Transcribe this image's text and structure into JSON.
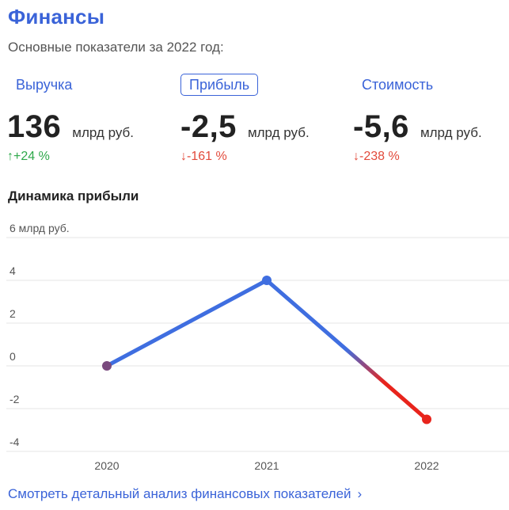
{
  "header": {
    "title": "Финансы",
    "subtitle": "Основные показатели за 2022 год:"
  },
  "tabs": [
    {
      "label": "Выручка",
      "active": false
    },
    {
      "label": "Прибыль",
      "active": true
    },
    {
      "label": "Стоимость",
      "active": false
    }
  ],
  "metrics": [
    {
      "value": "136",
      "unit": "млрд руб.",
      "delta": "↑+24 %",
      "trend": "up"
    },
    {
      "value": "-2,5",
      "unit": "млрд руб.",
      "delta": "↓-161 %",
      "trend": "down"
    },
    {
      "value": "-5,6",
      "unit": "млрд руб.",
      "delta": "↓-238 %",
      "trend": "down"
    }
  ],
  "chart_title": "Динамика прибыли",
  "chart_data": {
    "type": "line",
    "x": [
      "2020",
      "2021",
      "2022"
    ],
    "series": [
      {
        "values": [
          0,
          4,
          -2.5
        ]
      }
    ],
    "ylim": [
      -4,
      6
    ],
    "yticks": [
      {
        "value": 6,
        "label": "6 млрд руб."
      },
      {
        "value": 4,
        "label": "4"
      },
      {
        "value": 2,
        "label": "2"
      },
      {
        "value": 0,
        "label": "0"
      },
      {
        "value": -2,
        "label": "-2"
      },
      {
        "value": -4,
        "label": "-4"
      }
    ],
    "grid": true,
    "colors": {
      "positive": "#3f6ee0",
      "negative": "#e8241c",
      "start_point": "#7a4a7e"
    }
  },
  "footer": {
    "link_label": "Смотреть детальный анализ финансовых показателей",
    "link_icon": "chevron-right-icon"
  }
}
